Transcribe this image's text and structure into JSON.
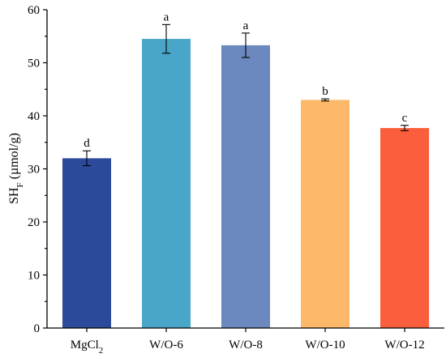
{
  "chart_data": {
    "type": "bar",
    "categories": [
      "MgCl",
      "W/O-6",
      "W/O-8",
      "W/O-10",
      "W/O-12"
    ],
    "category_subscripts": [
      "2",
      "",
      "",
      "",
      ""
    ],
    "values": [
      32.0,
      54.5,
      53.3,
      43.0,
      37.7
    ],
    "errors": [
      1.4,
      2.7,
      2.3,
      0.2,
      0.5
    ],
    "significance": [
      "d",
      "a",
      "a",
      "b",
      "c"
    ],
    "colors": [
      "#2b4a9c",
      "#4aa6c9",
      "#6b88bf",
      "#fdb86a",
      "#fb5e3c"
    ],
    "ylabel_main": "SH",
    "ylabel_sub": "F",
    "ylabel_unit": " (µmol/g)",
    "ylim": [
      0,
      60
    ],
    "yticks": [
      0,
      10,
      20,
      30,
      40,
      50,
      60
    ],
    "grid": false,
    "legend": "none"
  }
}
